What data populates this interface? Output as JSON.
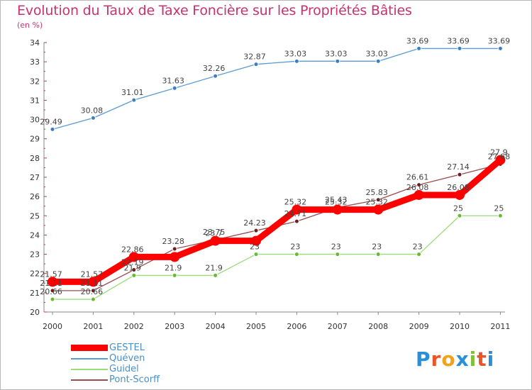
{
  "title": "Evolution du Taux de Taxe Foncière sur les Propriétés Bâties",
  "subtitle": "(en %)",
  "logo": {
    "text": "Proxiti",
    "colors": [
      "#2a8fd6",
      "#e8562a",
      "#f2a31b",
      "#2a8fd6",
      "#7fbf3a",
      "#e8562a",
      "#2a8fd6"
    ]
  },
  "chart_data": {
    "type": "line",
    "title": "Evolution du Taux de Taxe Foncière sur les Propriétés Bâties",
    "ylabel": "(en %)",
    "xlabel": "",
    "categories": [
      "2000",
      "2001",
      "2002",
      "2003",
      "2004",
      "2005",
      "2006",
      "2007",
      "2008",
      "2009",
      "2010",
      "2011"
    ],
    "ylim": [
      20,
      34
    ],
    "yticks": [
      20,
      21,
      22,
      23,
      24,
      25,
      26,
      27,
      28,
      29,
      30,
      31,
      32,
      33,
      34
    ],
    "grid": false,
    "legend_position": "bottom-left",
    "series": [
      {
        "name": "GESTEL",
        "color": "#ff0000",
        "marker": "#ff0000",
        "values": [
          21.57,
          21.57,
          22.86,
          22.86,
          23.7,
          23.7,
          25.32,
          25.32,
          25.32,
          26.08,
          26.08,
          27.9
        ],
        "labels": [
          "21.57",
          "21.57",
          "22.86",
          "",
          "23.7",
          "",
          "25.32",
          "25.32",
          "25.32",
          "26.08",
          "26.08",
          "27.9"
        ]
      },
      {
        "name": "Quéven",
        "color": "#5b9bd5",
        "marker": "#3a7fc1",
        "values": [
          29.49,
          30.08,
          31.01,
          31.63,
          32.26,
          32.87,
          33.03,
          33.03,
          33.03,
          33.69,
          33.69,
          33.69
        ],
        "labels": [
          "29.49",
          "30.08",
          "31.01",
          "31.63",
          "32.26",
          "32.87",
          "33.03",
          "33.03",
          "33.03",
          "33.69",
          "33.69",
          "33.69"
        ]
      },
      {
        "name": "Guidel",
        "color": "#99dd77",
        "marker": "#66bb33",
        "values": [
          20.66,
          20.66,
          21.9,
          21.9,
          21.9,
          23,
          23,
          23,
          23,
          23,
          25,
          25
        ],
        "labels": [
          "20.66",
          "20.66",
          "21.9",
          "21.9",
          "21.9",
          "23",
          "23",
          "23",
          "23",
          "23",
          "25",
          "25"
        ]
      },
      {
        "name": "Pont-Scorff",
        "color": "#9b4c4c",
        "marker": "#6b2020",
        "values": [
          21.11,
          21.11,
          22.19,
          23.28,
          23.75,
          24.23,
          24.71,
          25.43,
          25.83,
          26.61,
          27.14,
          27.68
        ],
        "labels": [
          "21.11",
          "21.11",
          "22.19",
          "23.28",
          "23.75",
          "24.23",
          "24.71",
          "25.43",
          "25.83",
          "26.61",
          "27.14",
          "27.68"
        ]
      }
    ]
  }
}
